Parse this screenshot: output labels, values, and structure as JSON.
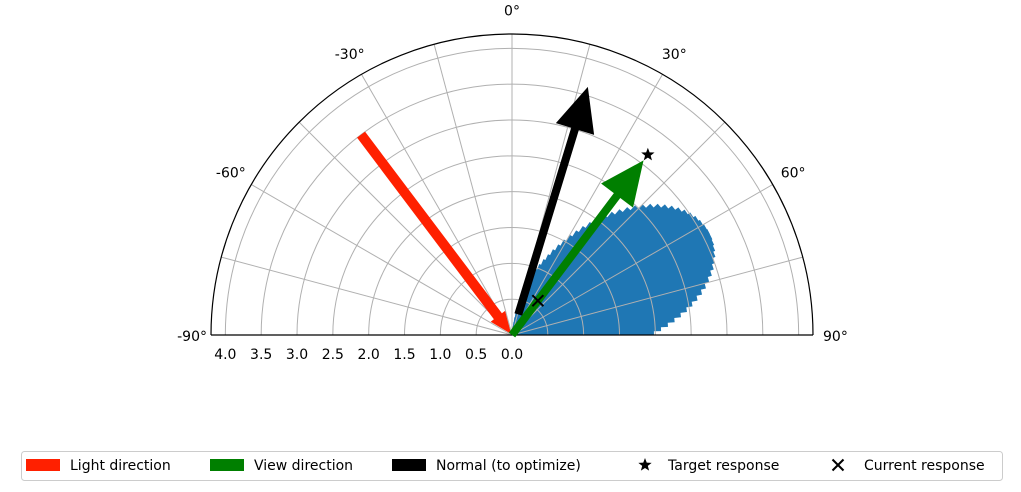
{
  "chart_data": {
    "type": "polar-half",
    "theta_range_deg": [
      -90,
      90
    ],
    "theta_zero": "top",
    "theta_ticks": [
      "-90°",
      "-60°",
      "-30°",
      "0°",
      "30°",
      "60°",
      "90°"
    ],
    "theta_tick_values": [
      -90,
      -60,
      -30,
      0,
      30,
      60,
      90
    ],
    "r_range": [
      0,
      4.2
    ],
    "r_ticks": [
      "0.0",
      "0.5",
      "1.0",
      "1.5",
      "2.0",
      "2.5",
      "3.0",
      "3.5",
      "4.0"
    ],
    "r_tick_values": [
      0,
      0.5,
      1.0,
      1.5,
      2.0,
      2.5,
      3.0,
      3.5,
      4.0
    ],
    "grid": true,
    "arrows": [
      {
        "name": "Light direction",
        "color": "#ff2000",
        "direction": "inward",
        "theta_deg": -37,
        "r_tail": 3.5,
        "r_tip": 0.02
      },
      {
        "name": "View direction",
        "color": "#007f00",
        "direction": "outward",
        "theta_deg": 37,
        "r_tail": 0.0,
        "r_tip": 3.05
      },
      {
        "name": "Normal (to optimize)",
        "color": "#000000",
        "direction": "outward",
        "theta_deg": 17,
        "r_tail": 0.3,
        "r_tip": 3.62
      }
    ],
    "lobe": {
      "color": "#1f77b4",
      "center_deg": 62,
      "spread_deg": 28,
      "max_r": 3.1,
      "min_r": 0.02
    },
    "markers": [
      {
        "name": "Target response",
        "symbol": "star",
        "theta_deg": 37,
        "r": 3.15
      },
      {
        "name": "Current response",
        "symbol": "x",
        "theta_deg": 37,
        "r": 0.6
      }
    ],
    "legend": {
      "placement": "bottom",
      "entries": [
        {
          "label": "Light direction",
          "kind": "patch",
          "color": "#ff2000"
        },
        {
          "label": "View direction",
          "kind": "patch",
          "color": "#007f00"
        },
        {
          "label": "Normal (to optimize)",
          "kind": "patch",
          "color": "#000000"
        },
        {
          "label": "Target response",
          "kind": "star",
          "color": "#000000"
        },
        {
          "label": "Current response",
          "kind": "x",
          "color": "#000000"
        }
      ]
    }
  }
}
